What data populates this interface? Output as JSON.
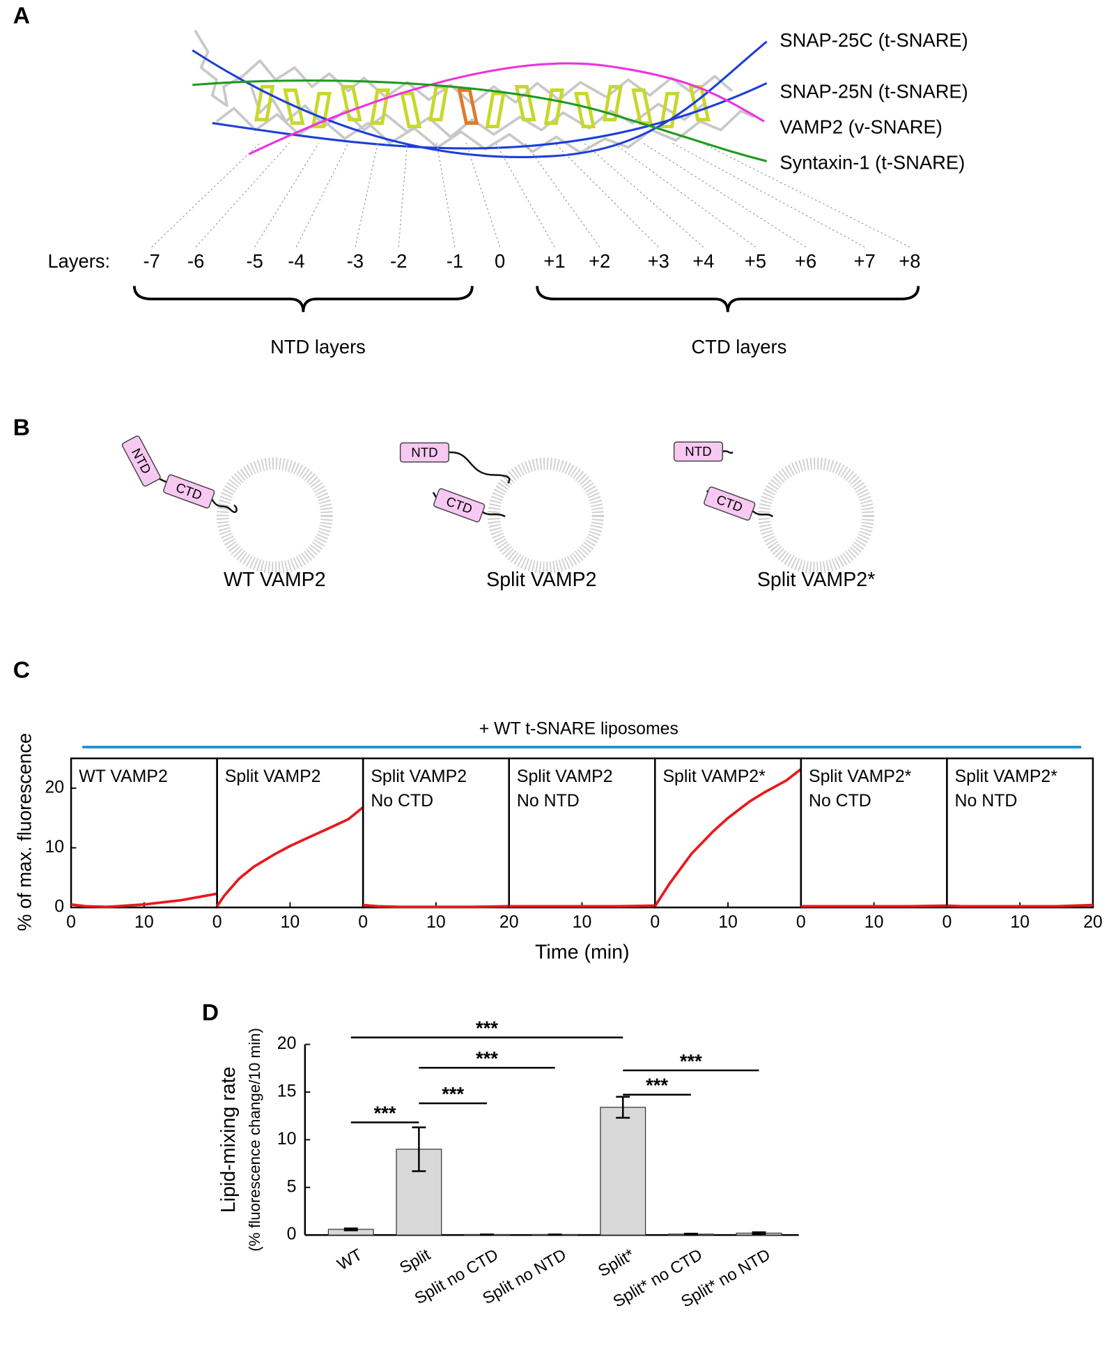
{
  "panel_labels": [
    "A",
    "B",
    "C",
    "D"
  ],
  "panel_a": {
    "helices": [
      {
        "name": "SNAP-25C (t-SNARE)",
        "color": "#1d3fd8"
      },
      {
        "name": "SNAP-25N (t-SNARE)",
        "color": "#1d3fd8"
      },
      {
        "name": "VAMP2 (v-SNARE)",
        "color": "#ee33dd"
      },
      {
        "name": "Syntaxin-1 (t-SNARE)",
        "color": "#1f9a1f"
      }
    ],
    "layers_label": "Layers:",
    "layers": [
      "-7",
      "-6",
      "-5",
      "-4",
      "-3",
      "-2",
      "-1",
      "0",
      "+1",
      "+2",
      "+3",
      "+4",
      "+5",
      "+6",
      "+7",
      "+8"
    ],
    "groups": [
      "NTD layers",
      "CTD layers"
    ]
  },
  "panel_b": {
    "constructs": [
      {
        "name": "WT VAMP2",
        "domains": [
          "NTD",
          "CTD"
        ]
      },
      {
        "name": "Split VAMP2",
        "domains": [
          "NTD",
          "CTD"
        ]
      },
      {
        "name": "Split VAMP2*",
        "domains": [
          "NTD",
          "CTD"
        ]
      }
    ]
  },
  "chart_data": [
    {
      "type": "line",
      "annotation": "+ WT t-SNARE liposomes",
      "annotation_color": "#1b8fd2",
      "ylabel": "% of max. fluorescence",
      "xlabel": "Time (min)",
      "color": "#e8191b",
      "xlim": [
        0,
        20
      ],
      "ylim": [
        0,
        25
      ],
      "yticks": [
        0,
        10,
        20
      ],
      "panels": [
        {
          "title": [
            "WT VAMP2"
          ],
          "xticks": [
            0,
            10
          ],
          "x": [
            0,
            2,
            5,
            10,
            15,
            20
          ],
          "values": [
            0.5,
            0.2,
            0.1,
            0.5,
            1.2,
            2.3
          ]
        },
        {
          "title": [
            "Split VAMP2"
          ],
          "xticks": [
            0,
            10
          ],
          "x": [
            0,
            1,
            3,
            5,
            8,
            10,
            13,
            15,
            18,
            20
          ],
          "values": [
            0.2,
            2,
            4.8,
            6.8,
            9,
            10.3,
            12,
            13.1,
            14.8,
            16.8
          ]
        },
        {
          "title": [
            "Split VAMP2",
            "No CTD"
          ],
          "xticks": [
            0,
            10,
            20
          ],
          "x": [
            0,
            2,
            5,
            10,
            15,
            20
          ],
          "values": [
            0.4,
            0.2,
            0.1,
            0.1,
            0.1,
            0.2
          ]
        },
        {
          "title": [
            "Split VAMP2",
            "No NTD"
          ],
          "xticks": [
            10
          ],
          "x": [
            0,
            2,
            5,
            10,
            15,
            20
          ],
          "values": [
            0.2,
            0.2,
            0.2,
            0.2,
            0.2,
            0.3
          ]
        },
        {
          "title": [
            "Split VAMP2*"
          ],
          "xticks": [
            0,
            10
          ],
          "x": [
            0,
            2,
            5,
            8,
            10,
            13,
            15,
            18,
            20
          ],
          "values": [
            0.2,
            4,
            9,
            12.8,
            15,
            17.8,
            19.3,
            21.3,
            23.2
          ]
        },
        {
          "title": [
            "Split VAMP2*",
            "No CTD"
          ],
          "xticks": [
            0,
            10
          ],
          "x": [
            0,
            2,
            5,
            10,
            15,
            20
          ],
          "values": [
            0.2,
            0.2,
            0.2,
            0.2,
            0.2,
            0.3
          ]
        },
        {
          "title": [
            "Split VAMP2*",
            "No NTD"
          ],
          "xticks": [
            0,
            10,
            20
          ],
          "x": [
            0,
            2,
            5,
            10,
            15,
            20
          ],
          "values": [
            0.3,
            0.2,
            0.2,
            0.2,
            0.2,
            0.4
          ]
        }
      ]
    },
    {
      "type": "bar",
      "ylabel": [
        "Lipid-mixing rate",
        "(% fluorescence change/10 min)"
      ],
      "categories": [
        "WT",
        "Split",
        "Split no CTD",
        "Split no NTD",
        "Split*",
        "Split* no CTD",
        "Split* no NTD"
      ],
      "values": [
        0.6,
        9.0,
        0.05,
        0.05,
        13.4,
        0.1,
        0.2
      ],
      "errors": [
        0.1,
        2.3,
        0.02,
        0.02,
        1.1,
        0.05,
        0.1
      ],
      "color": "#d9d9d9",
      "ylim": [
        0,
        20
      ],
      "yticks": [
        0,
        5,
        10,
        15,
        20
      ],
      "significance": [
        {
          "between": [
            0,
            4
          ],
          "label": "***"
        },
        {
          "between": [
            1,
            3
          ],
          "label": "***"
        },
        {
          "between": [
            1,
            2
          ],
          "label": "***"
        },
        {
          "between": [
            0,
            1
          ],
          "label": "***"
        },
        {
          "between": [
            4,
            6
          ],
          "label": "***"
        },
        {
          "between": [
            4,
            5
          ],
          "label": "***"
        }
      ]
    }
  ]
}
